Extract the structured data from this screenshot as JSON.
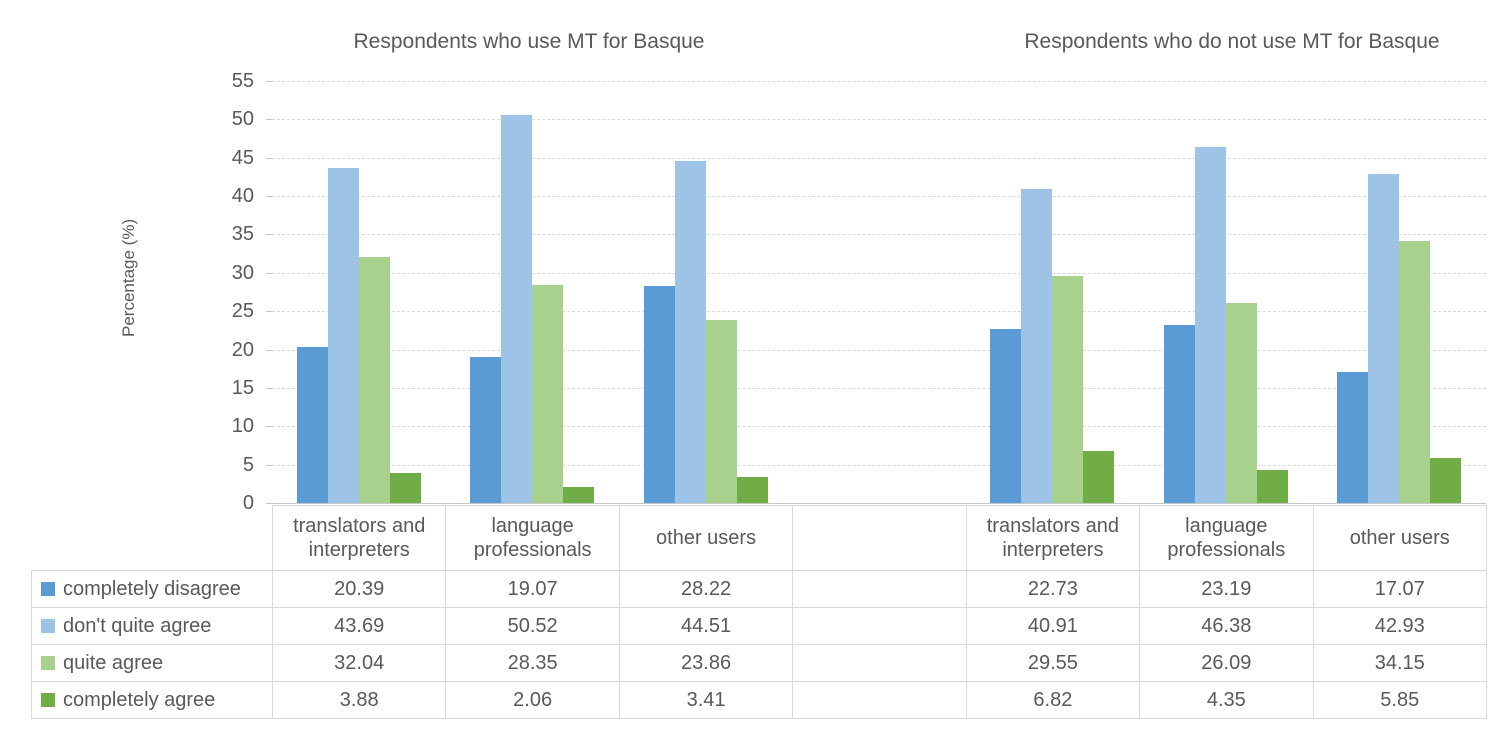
{
  "colors": {
    "text": "#595959",
    "gridline": "#d9d9d9",
    "axis": "#c6c6c6",
    "series_completely_disagree": "#5b9bd5",
    "series_dont_quite_agree": "#9dc3e6",
    "series_quite_agree": "#a9d18e",
    "series_completely_agree": "#70ad47"
  },
  "chart_data": {
    "type": "bar",
    "title_left": "Respondents who use MT for Basque",
    "title_right": "Respondents who do not use MT for Basque",
    "ylabel": "Percentage (%)",
    "ylim": [
      0,
      55
    ],
    "ytick_step": 5,
    "grid": true,
    "legend_position": "data-table-left-column",
    "categories": [
      "translators and interpreters",
      "language professionals",
      "other users",
      "",
      "translators and interpreters",
      "language professionals",
      "other users"
    ],
    "series": [
      {
        "name": "completely disagree",
        "color": "#5b9bd5",
        "values": [
          20.39,
          19.07,
          28.22,
          null,
          22.73,
          23.19,
          17.07
        ]
      },
      {
        "name": "don't quite agree",
        "color": "#9dc3e6",
        "values": [
          43.69,
          50.52,
          44.51,
          null,
          40.91,
          46.38,
          42.93
        ]
      },
      {
        "name": "quite agree",
        "color": "#a9d18e",
        "values": [
          32.04,
          28.35,
          23.86,
          null,
          29.55,
          26.09,
          34.15
        ]
      },
      {
        "name": "completely agree",
        "color": "#70ad47",
        "values": [
          3.88,
          2.06,
          3.41,
          null,
          6.82,
          4.35,
          5.85
        ]
      }
    ]
  }
}
